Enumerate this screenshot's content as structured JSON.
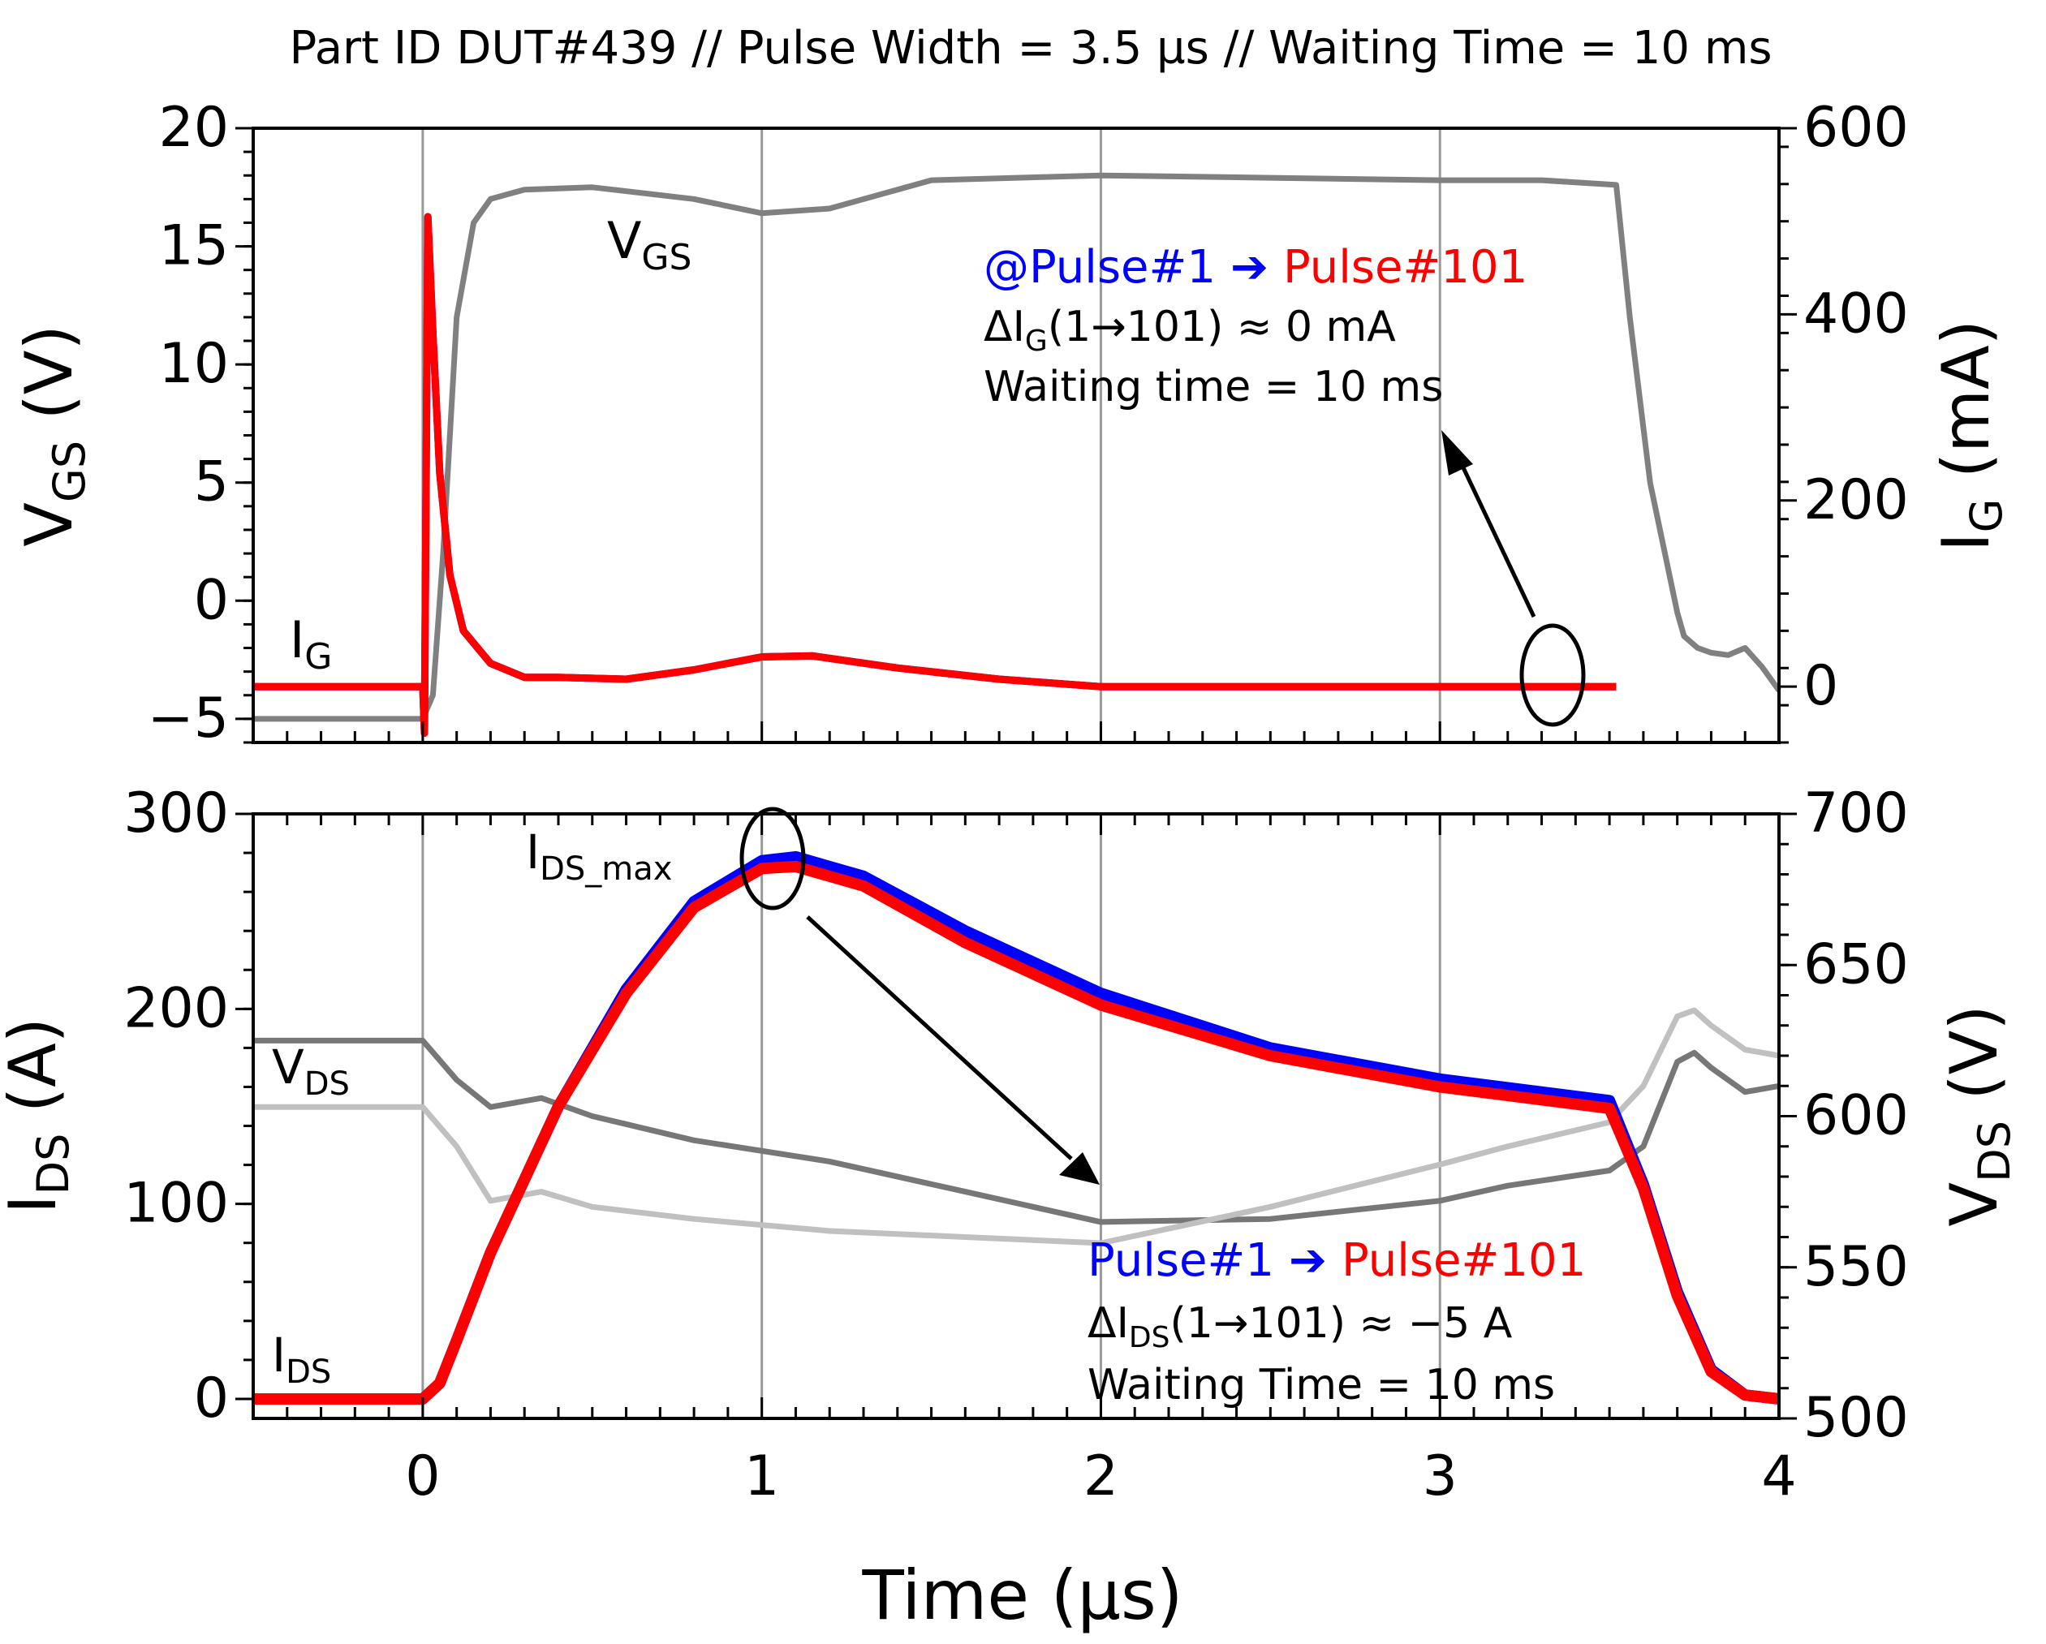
{
  "title": "Part ID DUT#439 // Pulse Width = 3.5 µs // Waiting Time = 10 ms",
  "colors": {
    "pulse1": "#0000ff",
    "pulse101": "#ff0000",
    "vgs": "#808080",
    "vds_a": "#777777",
    "vds_b": "#c0c0c0",
    "grid": "#999999"
  },
  "x_axis": {
    "label": "Time (µs)",
    "range": [
      -0.5,
      4
    ],
    "ticks": [
      "0",
      "1",
      "2",
      "3",
      "4"
    ]
  },
  "chart_data": [
    {
      "type": "line",
      "panel": "top",
      "left_axis": {
        "label_main": "V",
        "label_sub": "GS",
        "label_unit": " (V)",
        "range": [
          -6,
          20
        ],
        "ticks": [
          "20",
          "15",
          "10",
          "5",
          "0",
          "−5"
        ]
      },
      "right_axis": {
        "label_main": "I",
        "label_sub": "G",
        "label_unit": " (mA)",
        "range": [
          -60,
          600
        ],
        "ticks": [
          "600",
          "400",
          "200",
          "0"
        ]
      },
      "curve_labels": {
        "vgs_main": "V",
        "vgs_sub": "GS",
        "ig_main": "I",
        "ig_sub": "G"
      },
      "series": [
        {
          "name": "VGS",
          "axis": "left",
          "x": [
            -0.5,
            0.0,
            0.03,
            0.06,
            0.1,
            0.15,
            0.2,
            0.3,
            0.5,
            0.8,
            1.0,
            1.2,
            1.5,
            2.0,
            2.5,
            3.0,
            3.3,
            3.52,
            3.56,
            3.62,
            3.7,
            3.72,
            3.76,
            3.8,
            3.85,
            3.9,
            3.95,
            4.0
          ],
          "y": [
            -5,
            -5,
            -4,
            2,
            12,
            16,
            17,
            17.4,
            17.5,
            17.0,
            16.4,
            16.6,
            17.8,
            18.0,
            17.9,
            17.8,
            17.8,
            17.6,
            12,
            5,
            -0.5,
            -1.5,
            -2.0,
            -2.2,
            -2.3,
            -2.0,
            -2.8,
            -3.8
          ]
        },
        {
          "name": "IG Pulse#1",
          "axis": "right",
          "x": [
            -0.5,
            0.0,
            0.005,
            0.015,
            0.03,
            0.05,
            0.08,
            0.12,
            0.2,
            0.3,
            0.4,
            0.6,
            0.8,
            1.0,
            1.15,
            1.4,
            1.7,
            2.0,
            2.5,
            3.0,
            3.3,
            3.52
          ],
          "y": [
            0,
            0,
            -50,
            505,
            380,
            230,
            120,
            60,
            25,
            10,
            10,
            8,
            18,
            32,
            33,
            20,
            8,
            0,
            0,
            0,
            0,
            0
          ]
        },
        {
          "name": "IG Pulse#101",
          "axis": "right",
          "x": [
            -0.5,
            0.0,
            0.005,
            0.015,
            0.03,
            0.05,
            0.08,
            0.12,
            0.2,
            0.3,
            0.4,
            0.6,
            0.8,
            1.0,
            1.15,
            1.4,
            1.7,
            2.0,
            2.5,
            3.0,
            3.3,
            3.52
          ],
          "y": [
            0,
            0,
            -50,
            505,
            380,
            230,
            120,
            60,
            25,
            10,
            10,
            8,
            18,
            32,
            33,
            20,
            8,
            0,
            0,
            0,
            0,
            0
          ]
        }
      ],
      "annotations": {
        "legend_pulse1": "@Pulse#1",
        "arrow": "➔",
        "legend_pulse101": "Pulse#101",
        "delta_prefix": "ΔI",
        "delta_sub": "G",
        "delta_suffix": "(1→101) ≈ 0 mA",
        "waiting": "Waiting time = 10 ms"
      }
    },
    {
      "type": "line",
      "panel": "bottom",
      "left_axis": {
        "label_main": "I",
        "label_sub": "DS",
        "label_unit": " (A)",
        "range": [
          -10,
          300
        ],
        "ticks": [
          "300",
          "200",
          "100",
          "0"
        ]
      },
      "right_axis": {
        "label_main": "V",
        "label_sub": "DS",
        "label_unit": " (V)",
        "range": [
          500,
          700
        ],
        "ticks": [
          "700",
          "650",
          "600",
          "550",
          "500"
        ]
      },
      "curve_labels": {
        "ids_max_main": "I",
        "ids_max_sub": "DS_max",
        "vds_main": "V",
        "vds_sub": "DS",
        "ids_main": "I",
        "ids_sub": "DS"
      },
      "series": [
        {
          "name": "IDS Pulse#1",
          "axis": "left",
          "x": [
            -0.5,
            0.0,
            0.05,
            0.1,
            0.2,
            0.4,
            0.6,
            0.8,
            1.0,
            1.1,
            1.3,
            1.6,
            2.0,
            2.5,
            3.0,
            3.5,
            3.6,
            3.7,
            3.8,
            3.9,
            4.0
          ],
          "y": [
            0,
            0,
            8,
            30,
            75,
            150,
            210,
            255,
            276,
            278,
            268,
            240,
            208,
            180,
            164,
            153,
            110,
            55,
            15,
            2,
            0
          ]
        },
        {
          "name": "IDS Pulse#101",
          "axis": "left",
          "x": [
            -0.5,
            0.0,
            0.05,
            0.1,
            0.2,
            0.4,
            0.6,
            0.8,
            1.0,
            1.1,
            1.3,
            1.6,
            2.0,
            2.5,
            3.0,
            3.5,
            3.6,
            3.7,
            3.8,
            3.9,
            4.0
          ],
          "y": [
            0,
            0,
            8,
            30,
            75,
            150,
            208,
            252,
            272,
            273,
            263,
            234,
            202,
            176,
            160,
            149,
            108,
            53,
            14,
            2,
            0
          ]
        },
        {
          "name": "VDS Pulse#1",
          "axis": "right",
          "x": [
            -0.5,
            0.0,
            0.1,
            0.2,
            0.35,
            0.5,
            0.8,
            1.2,
            1.6,
            2.0,
            2.5,
            3.0,
            3.2,
            3.5,
            3.6,
            3.7,
            3.75,
            3.8,
            3.9,
            4.0
          ],
          "y": [
            625,
            625,
            612,
            603,
            606,
            600,
            592,
            585,
            575,
            565,
            566,
            572,
            577,
            582,
            590,
            618,
            621,
            616,
            608,
            610
          ]
        },
        {
          "name": "VDS Pulse#101",
          "axis": "right",
          "x": [
            -0.5,
            0.0,
            0.1,
            0.2,
            0.35,
            0.5,
            0.8,
            1.2,
            1.6,
            2.0,
            2.5,
            3.0,
            3.2,
            3.5,
            3.6,
            3.7,
            3.75,
            3.8,
            3.9,
            4.0
          ],
          "y": [
            603,
            603,
            590,
            572,
            575,
            570,
            566,
            562,
            560,
            558,
            570,
            584,
            590,
            598,
            610,
            633,
            635,
            630,
            622,
            620
          ]
        }
      ],
      "annotations": {
        "legend_pulse1": "Pulse#1",
        "arrow": "➔",
        "legend_pulse101": "Pulse#101",
        "delta_prefix": "ΔI",
        "delta_sub": "DS",
        "delta_suffix": "(1→101) ≈ −5 A",
        "waiting": "Waiting Time = 10 ms"
      }
    }
  ]
}
